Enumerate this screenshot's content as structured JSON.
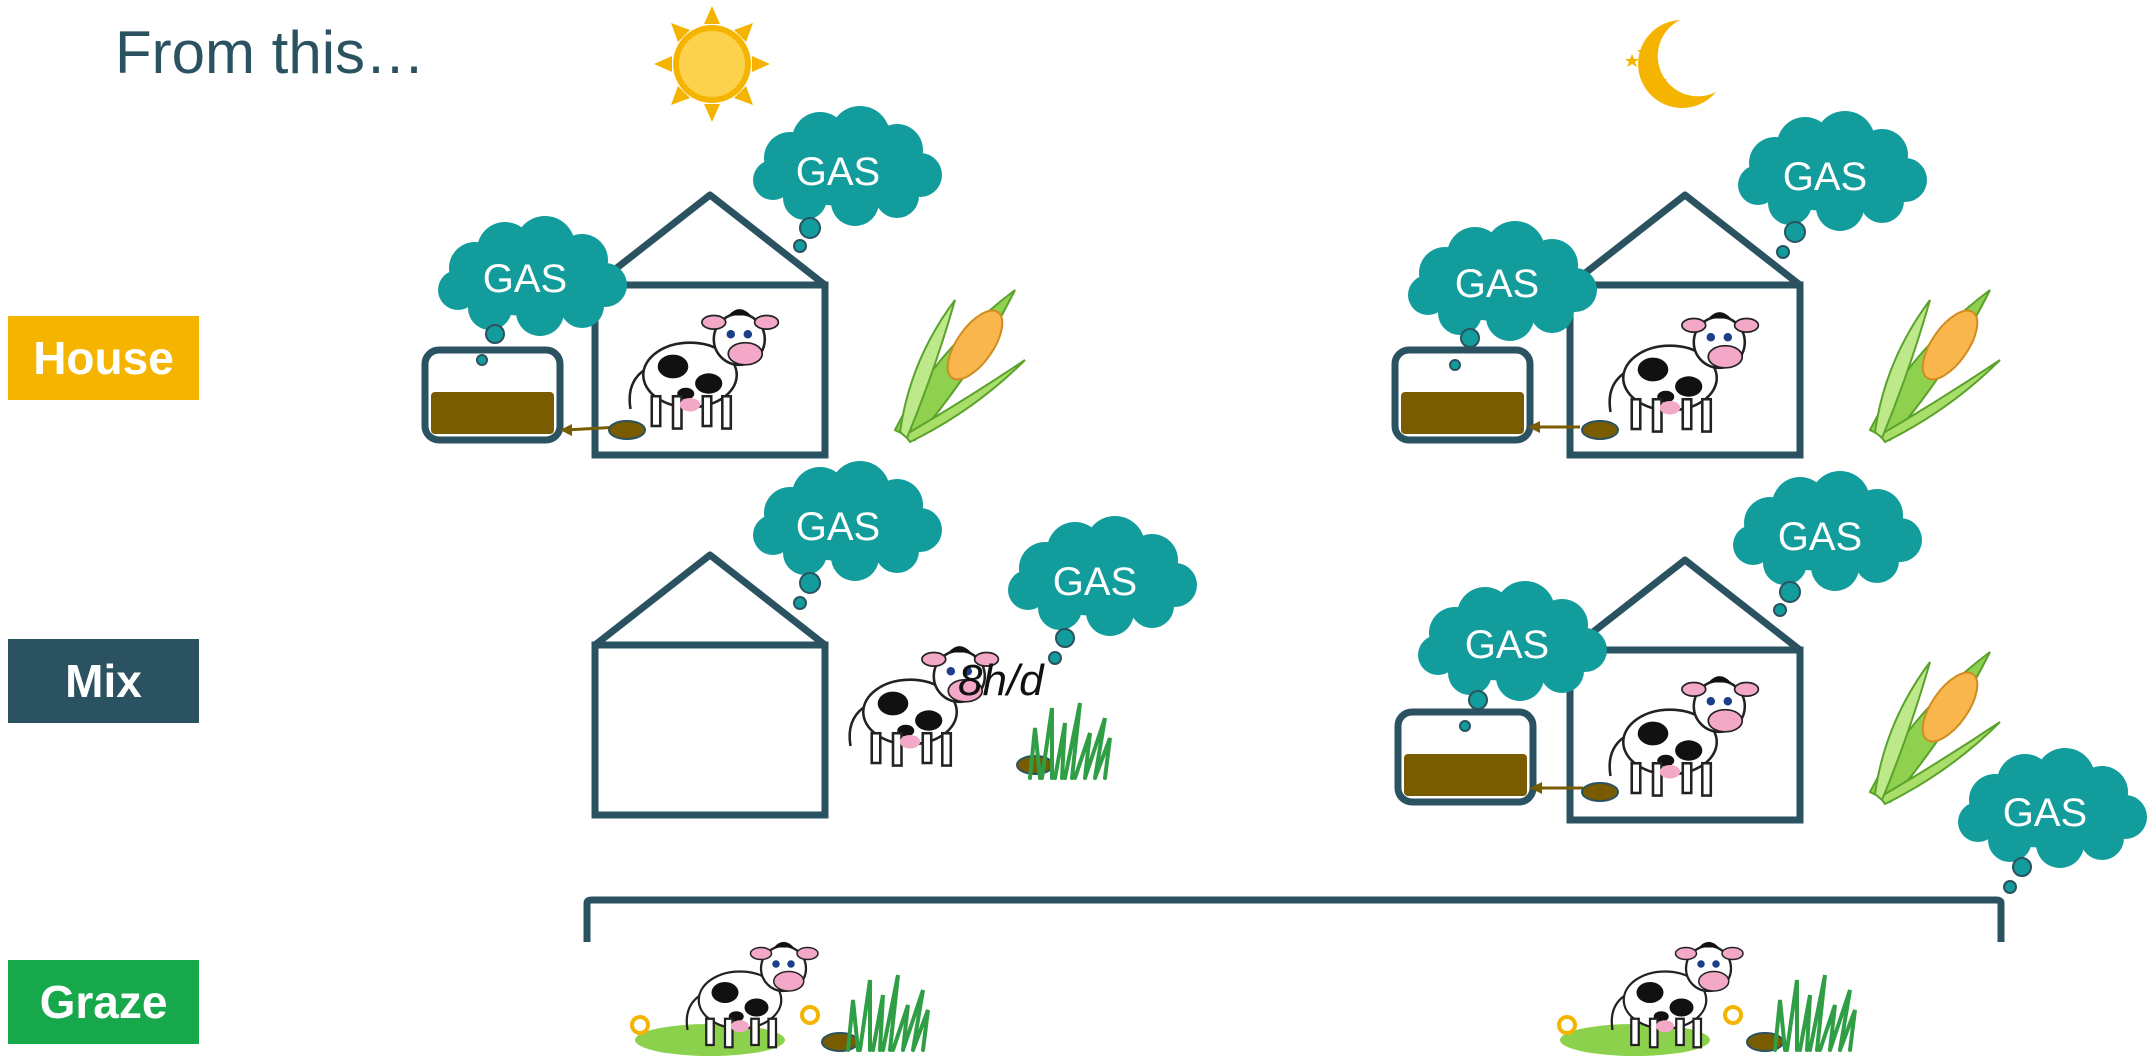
{
  "title": "From this…",
  "rows": {
    "house": {
      "label": "House",
      "color": "#f4b400"
    },
    "mix": {
      "label": "Mix",
      "color": "#2b5260"
    },
    "graze": {
      "label": "Graze",
      "color": "#17a84b"
    }
  },
  "gas_label": "GAS",
  "mix_duration": "8h/d",
  "colors": {
    "gas_cloud": "#129c9c",
    "outline": "#2b5260",
    "manure": "#7a5c00",
    "sun": "#f4b400",
    "moon": "#f4b400"
  },
  "icons": [
    "sun-icon",
    "moon-icon",
    "cow-icon",
    "corn-icon",
    "grass-icon",
    "manure-tank-icon",
    "barn-icon"
  ]
}
